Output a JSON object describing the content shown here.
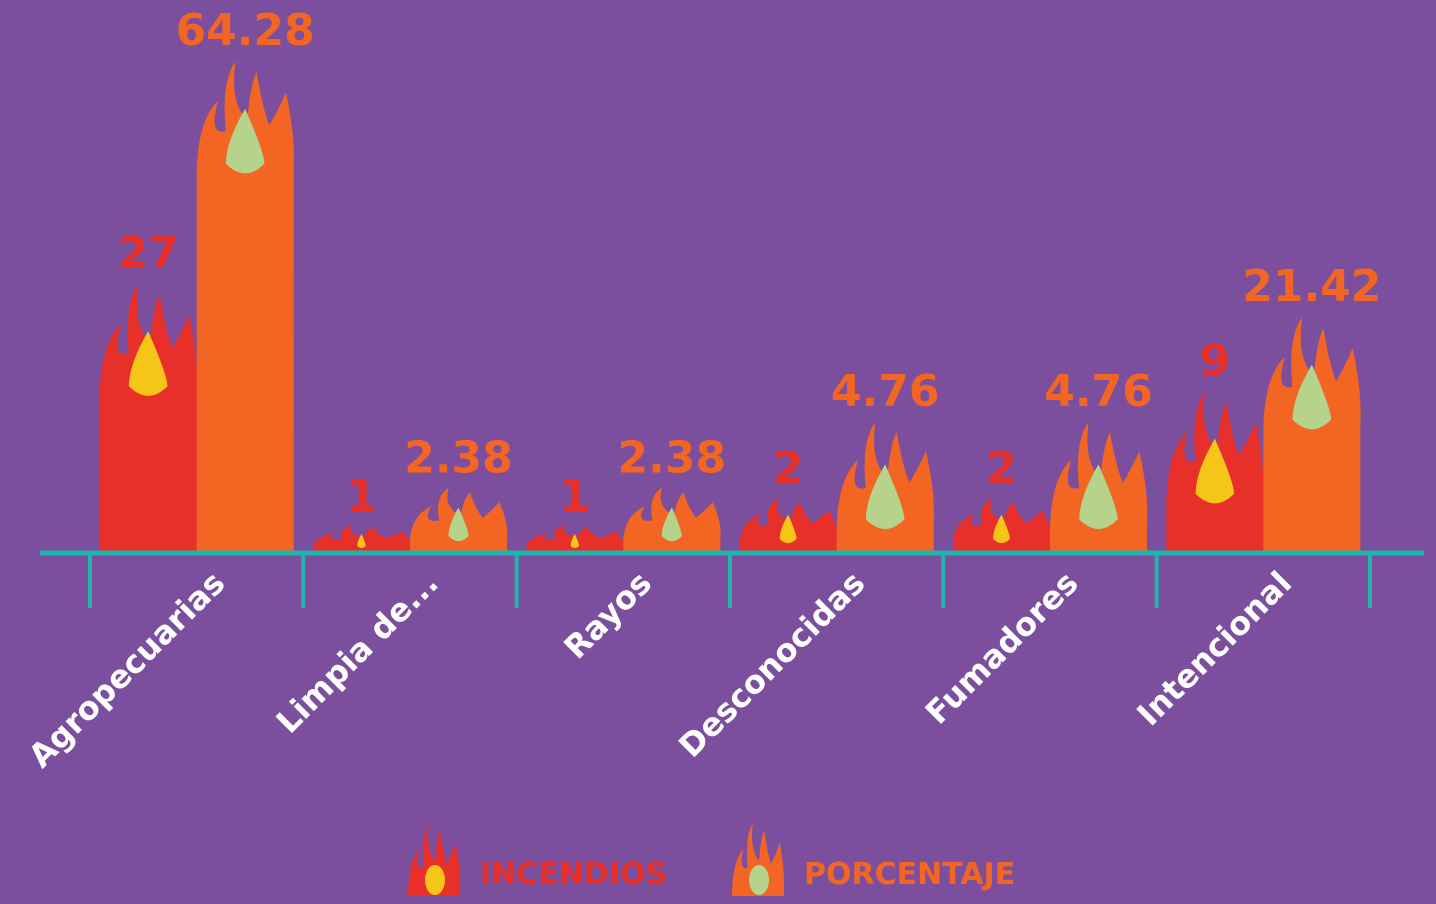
{
  "chart_data": {
    "type": "bar",
    "categories": [
      "Agropecuarias",
      "Limpia de...",
      "Rayos",
      "Desconocidas",
      "Fumadores",
      "Intencional"
    ],
    "series": [
      {
        "name": "INCENDIOS",
        "color": "#e8302a",
        "values": [
          27,
          1,
          1,
          2,
          2,
          9
        ]
      },
      {
        "name": "PORCENTAJE",
        "color": "#f26522",
        "values": [
          64.28,
          2.38,
          2.38,
          4.76,
          4.76,
          21.42
        ]
      }
    ],
    "axis_color": "#1fb5ad",
    "background": "#7b4f9e"
  }
}
